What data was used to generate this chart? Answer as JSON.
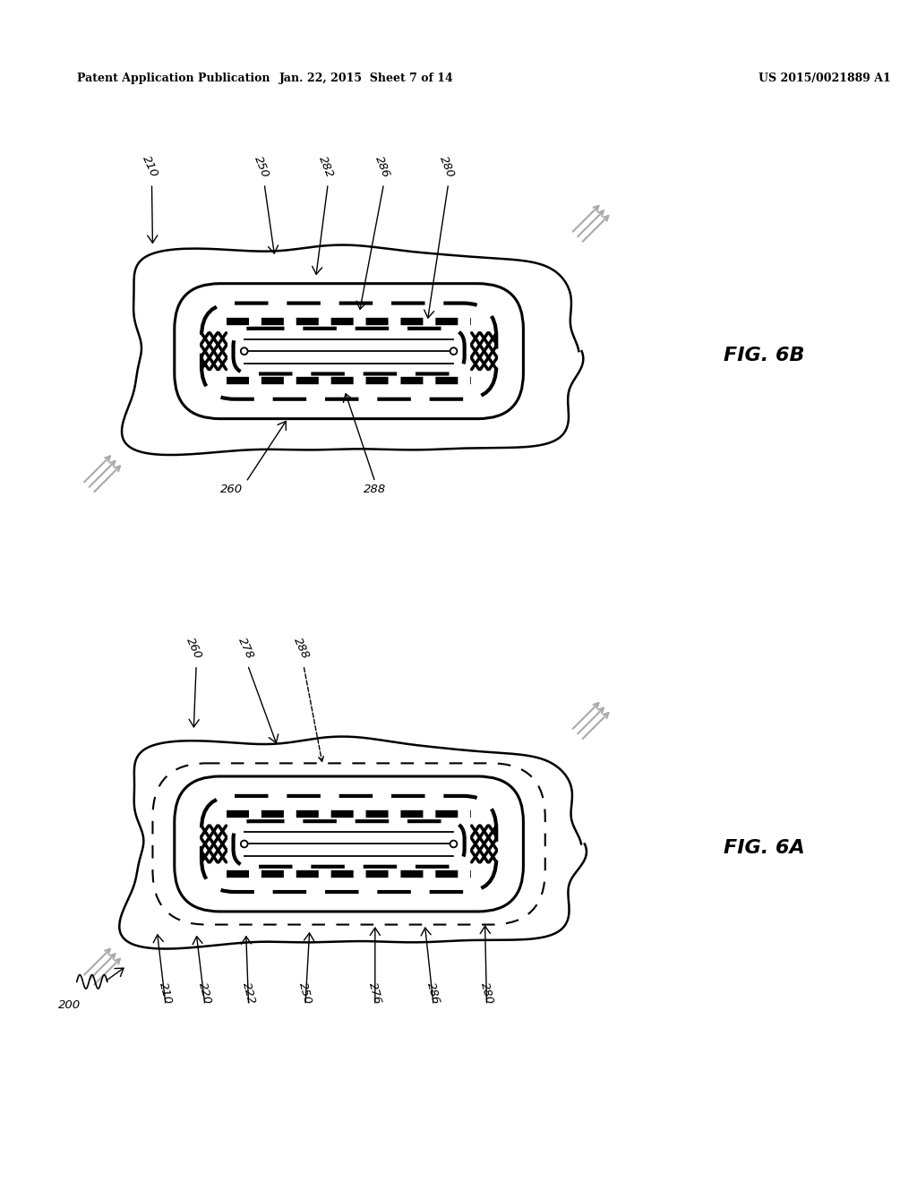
{
  "bg_color": "#ffffff",
  "header_left": "Patent Application Publication",
  "header_center": "Jan. 22, 2015  Sheet 7 of 14",
  "header_right": "US 2015/0021889 A1",
  "fig6b_label": "FIG. 6B",
  "fig6a_label": "FIG. 6A"
}
